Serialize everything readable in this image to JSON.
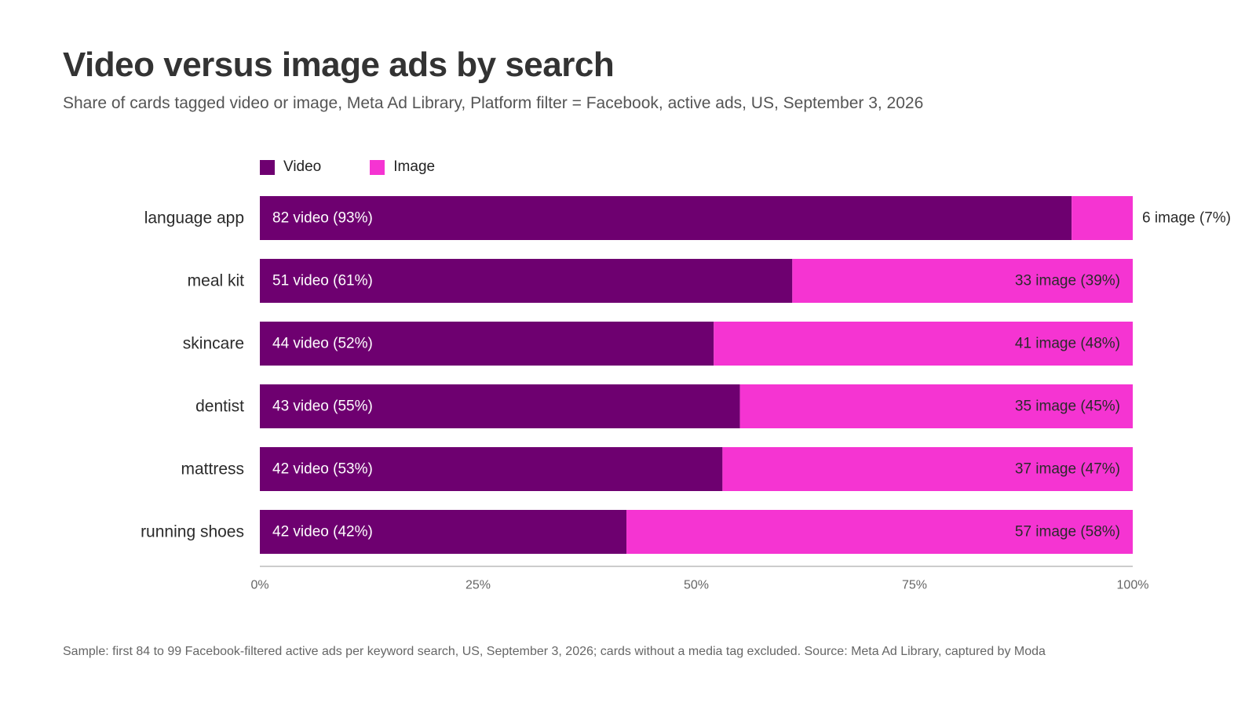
{
  "header": {
    "title": "Video versus image ads by search",
    "subtitle": "Share of cards tagged video or image, Meta Ad Library, Platform filter = Facebook, active ads, US, September 3, 2026"
  },
  "legend": {
    "video_label": "Video",
    "image_label": "Image"
  },
  "colors": {
    "video": "#6e0070",
    "image": "#f534d2",
    "axis": "#cccccc",
    "category_text": "#2b2b2b",
    "tick_text": "#666666"
  },
  "footnote": "Sample: first 84 to 99 Facebook-filtered active ads per keyword search, US, September 3, 2026; cards without a media tag excluded. Source: Meta Ad Library, captured by Moda",
  "chart_data": {
    "type": "bar",
    "orientation": "horizontal",
    "stacked": true,
    "xlim": [
      0,
      100
    ],
    "x_ticks": [
      "0%",
      "25%",
      "50%",
      "75%",
      "100%"
    ],
    "legend_position": "top-left",
    "grid": false,
    "categories": [
      "language app",
      "meal kit",
      "skincare",
      "dentist",
      "mattress",
      "running shoes"
    ],
    "series": [
      {
        "name": "Video",
        "values": [
          93,
          61,
          52,
          55,
          53,
          42
        ],
        "labels": [
          "82 video (93%)",
          "51 video (61%)",
          "44 video (52%)",
          "43 video (55%)",
          "42 video (53%)",
          "42 video (42%)"
        ]
      },
      {
        "name": "Image",
        "values": [
          7,
          39,
          48,
          45,
          47,
          58
        ],
        "labels": [
          "6 image (7%)",
          "33 image (39%)",
          "41 image (48%)",
          "35 image (45%)",
          "37 image (47%)",
          "57 image (58%)"
        ]
      }
    ]
  }
}
